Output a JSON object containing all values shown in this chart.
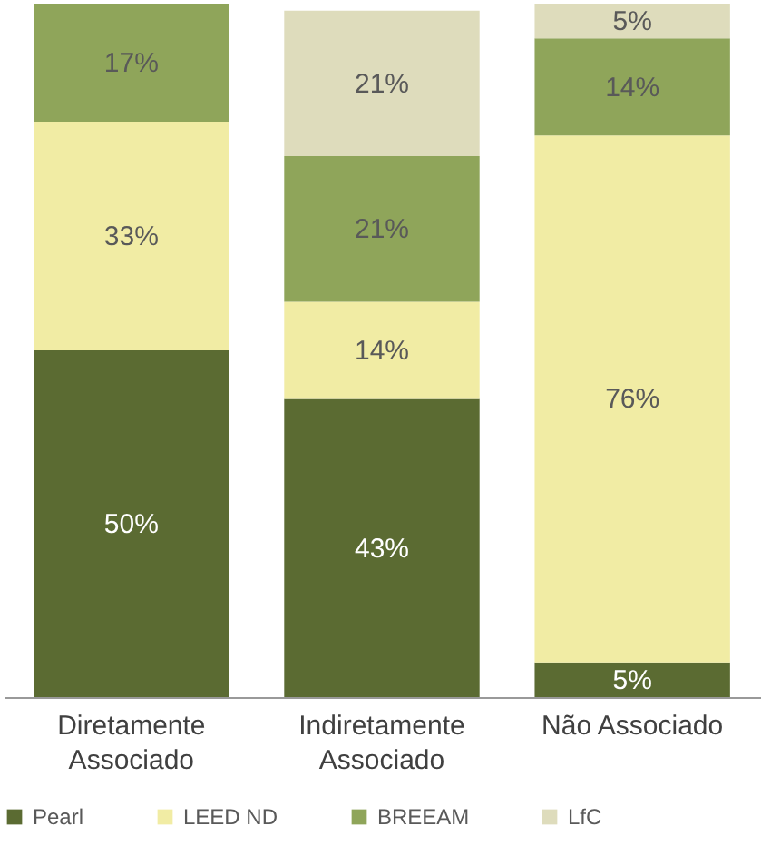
{
  "chart_data": {
    "type": "bar",
    "stacked": true,
    "categories": [
      "Diretamente\nAssociado",
      "Indiretamente\nAssociado",
      "Não Associado"
    ],
    "series": [
      {
        "name": "Pearl",
        "color": "#5b6b32",
        "values": [
          50,
          43,
          5
        ],
        "value_labels": [
          "50%",
          "43%",
          "5%"
        ]
      },
      {
        "name": "LEED ND",
        "color": "#f1eca4",
        "values": [
          33,
          14,
          76
        ],
        "value_labels": [
          "33%",
          "14%",
          "76%"
        ]
      },
      {
        "name": "BREEAM",
        "color": "#8fa55a",
        "values": [
          17,
          21,
          14
        ],
        "value_labels": [
          "17%",
          "21%",
          "14%"
        ]
      },
      {
        "name": "LfC",
        "color": "#dedcbc",
        "values": [
          0,
          21,
          5
        ],
        "value_labels": [
          null,
          "21%",
          "5%"
        ]
      }
    ],
    "ylim": [
      0,
      100
    ],
    "tick_labels": "x",
    "grid": false,
    "legend": "bottom"
  }
}
